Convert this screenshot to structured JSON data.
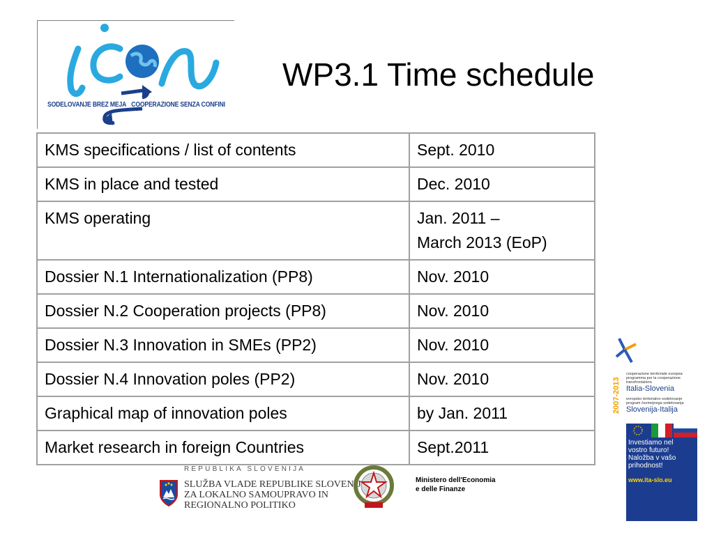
{
  "slide": {
    "title": "WP3.1 Time schedule"
  },
  "logo": {
    "icon_name": "icon-project-logo",
    "caption_left": "SODELOVANJE BREZ MEJA",
    "caption_right": "COOPERAZIONE SENZA CONFINI",
    "colors": {
      "letters": "#29a9e0",
      "arrows": "#1b3f8a",
      "globe": "#1e6fc0"
    }
  },
  "schedule": {
    "rows": [
      {
        "task": "KMS specifications / list of contents",
        "date": "Sept. 2010"
      },
      {
        "task": "KMS in place and tested",
        "date": "Dec. 2010"
      },
      {
        "task": "KMS operating",
        "date": "Jan. 2011 –",
        "date_line2": "March 2013 (EoP)"
      },
      {
        "task": "Dossier N.1 Internationalization (PP8)",
        "date": "Nov. 2010"
      },
      {
        "task": "Dossier N.2 Cooperation projects (PP8)",
        "date": "Nov. 2010"
      },
      {
        "task": "Dossier N.3 Innovation in SMEs (PP2)",
        "date": "Nov. 2010"
      },
      {
        "task": "Dossier N.4 Innovation poles (PP2)",
        "date": "Nov. 2010"
      },
      {
        "task": "Graphical map of innovation poles",
        "date": "by Jan. 2011"
      },
      {
        "task": "Market research in foreign Countries",
        "date": "Sept.2011"
      }
    ]
  },
  "footer": {
    "slovenia_header": "REPUBLIKA SLOVENIJA",
    "slovenia_line1": "SLUŽBA VLADE REPUBLIKE SLOVENIJE",
    "slovenia_line2": "ZA LOKALNO SAMOUPRAVO IN",
    "slovenia_line3": "REGIONALNO POLITIKO",
    "ministry_line1": "Ministero dell'Economia",
    "ministry_line2": "e delle Finanze"
  },
  "programme": {
    "years": "2007-2013",
    "small_it_1": "cooperazione territoriale europea",
    "small_it_2": "programma per la cooperazione",
    "small_it_3": "transfrontaliera",
    "big_it": "Italia-Slovenia",
    "small_sl_1": "evropsko teritorialno sodelovanje",
    "small_sl_2": "program čezmejnega sodelovanja",
    "big_sl": "Slovenija-Italija",
    "poster_1": "Investiamo nel",
    "poster_2": "vostro futuro!",
    "poster_3": "Naložba v vašo",
    "poster_4": "prihodnost!",
    "poster_url": "www.ita-slo.eu"
  }
}
